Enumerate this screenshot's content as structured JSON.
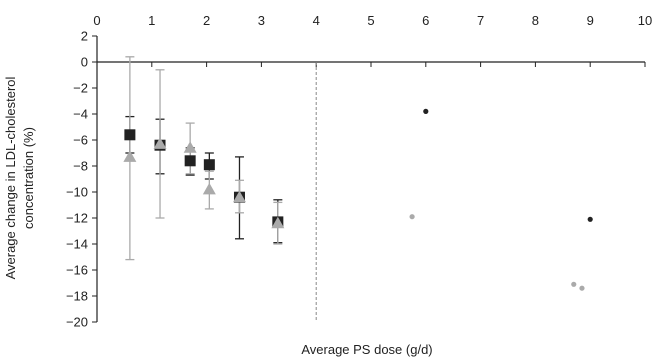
{
  "chart_data": {
    "type": "scatter",
    "xlabel": "Average PS dose (g/d)",
    "ylabel_lines": [
      "Average change in LDL-cholesterol",
      "concentration (%)"
    ],
    "xlim": [
      0,
      10
    ],
    "ylim": [
      -20,
      2
    ],
    "x_ticks": [
      0,
      1,
      2,
      3,
      4,
      5,
      6,
      7,
      8,
      9,
      10
    ],
    "y_ticks": [
      2,
      0,
      -2,
      -4,
      -6,
      -8,
      -10,
      -12,
      -14,
      -16,
      -18,
      -20
    ],
    "x_tick_labels": [
      "0",
      "1",
      "2",
      "3",
      "4",
      "5",
      "6",
      "7",
      "8",
      "9",
      "10"
    ],
    "y_tick_labels": [
      "2",
      "0",
      "−2",
      "−4",
      "−6",
      "−8",
      "−10",
      "−12",
      "−14",
      "−16",
      "−18",
      "−20"
    ],
    "x_axis_position": "top",
    "grid": false,
    "reference_line_x": 4,
    "colors": {
      "black": "#222222",
      "grey": "#aaaaaa"
    },
    "series": [
      {
        "marker": "square",
        "color": "#222222",
        "points": [
          {
            "x": 0.6,
            "y": -5.6,
            "err_low": -7.0,
            "err_high": -4.2
          },
          {
            "x": 1.15,
            "y": -6.4,
            "err_low": -8.6,
            "err_high": -4.4
          },
          {
            "x": 1.7,
            "y": -7.6,
            "err_low": -8.7,
            "err_high": -6.6
          },
          {
            "x": 2.05,
            "y": -7.9,
            "err_low": -9.0,
            "err_high": -7.0
          },
          {
            "x": 2.6,
            "y": -10.4,
            "err_low": -13.6,
            "err_high": -7.3
          },
          {
            "x": 3.3,
            "y": -12.3,
            "err_low": -13.9,
            "err_high": -10.6
          }
        ]
      },
      {
        "marker": "triangle",
        "color": "#aaaaaa",
        "points": [
          {
            "x": 0.6,
            "y": -7.3,
            "err_low": -15.2,
            "err_high": 0.4
          },
          {
            "x": 1.15,
            "y": -6.3,
            "err_low": -12.0,
            "err_high": -0.6
          },
          {
            "x": 1.7,
            "y": -6.6,
            "err_low": -8.6,
            "err_high": -4.7
          },
          {
            "x": 2.05,
            "y": -9.8,
            "err_low": -11.3,
            "err_high": -8.4
          },
          {
            "x": 2.6,
            "y": -10.4,
            "err_low": -11.6,
            "err_high": -9.1
          },
          {
            "x": 3.3,
            "y": -12.4,
            "err_low": -14.0,
            "err_high": -10.8
          }
        ]
      },
      {
        "marker": "dot",
        "color": "#222222",
        "points": [
          {
            "x": 6.0,
            "y": -3.8
          },
          {
            "x": 9.0,
            "y": -12.1
          }
        ]
      },
      {
        "marker": "dot",
        "color": "#aaaaaa",
        "points": [
          {
            "x": 5.75,
            "y": -11.9
          },
          {
            "x": 8.7,
            "y": -17.1
          },
          {
            "x": 8.85,
            "y": -17.4
          }
        ]
      }
    ]
  }
}
